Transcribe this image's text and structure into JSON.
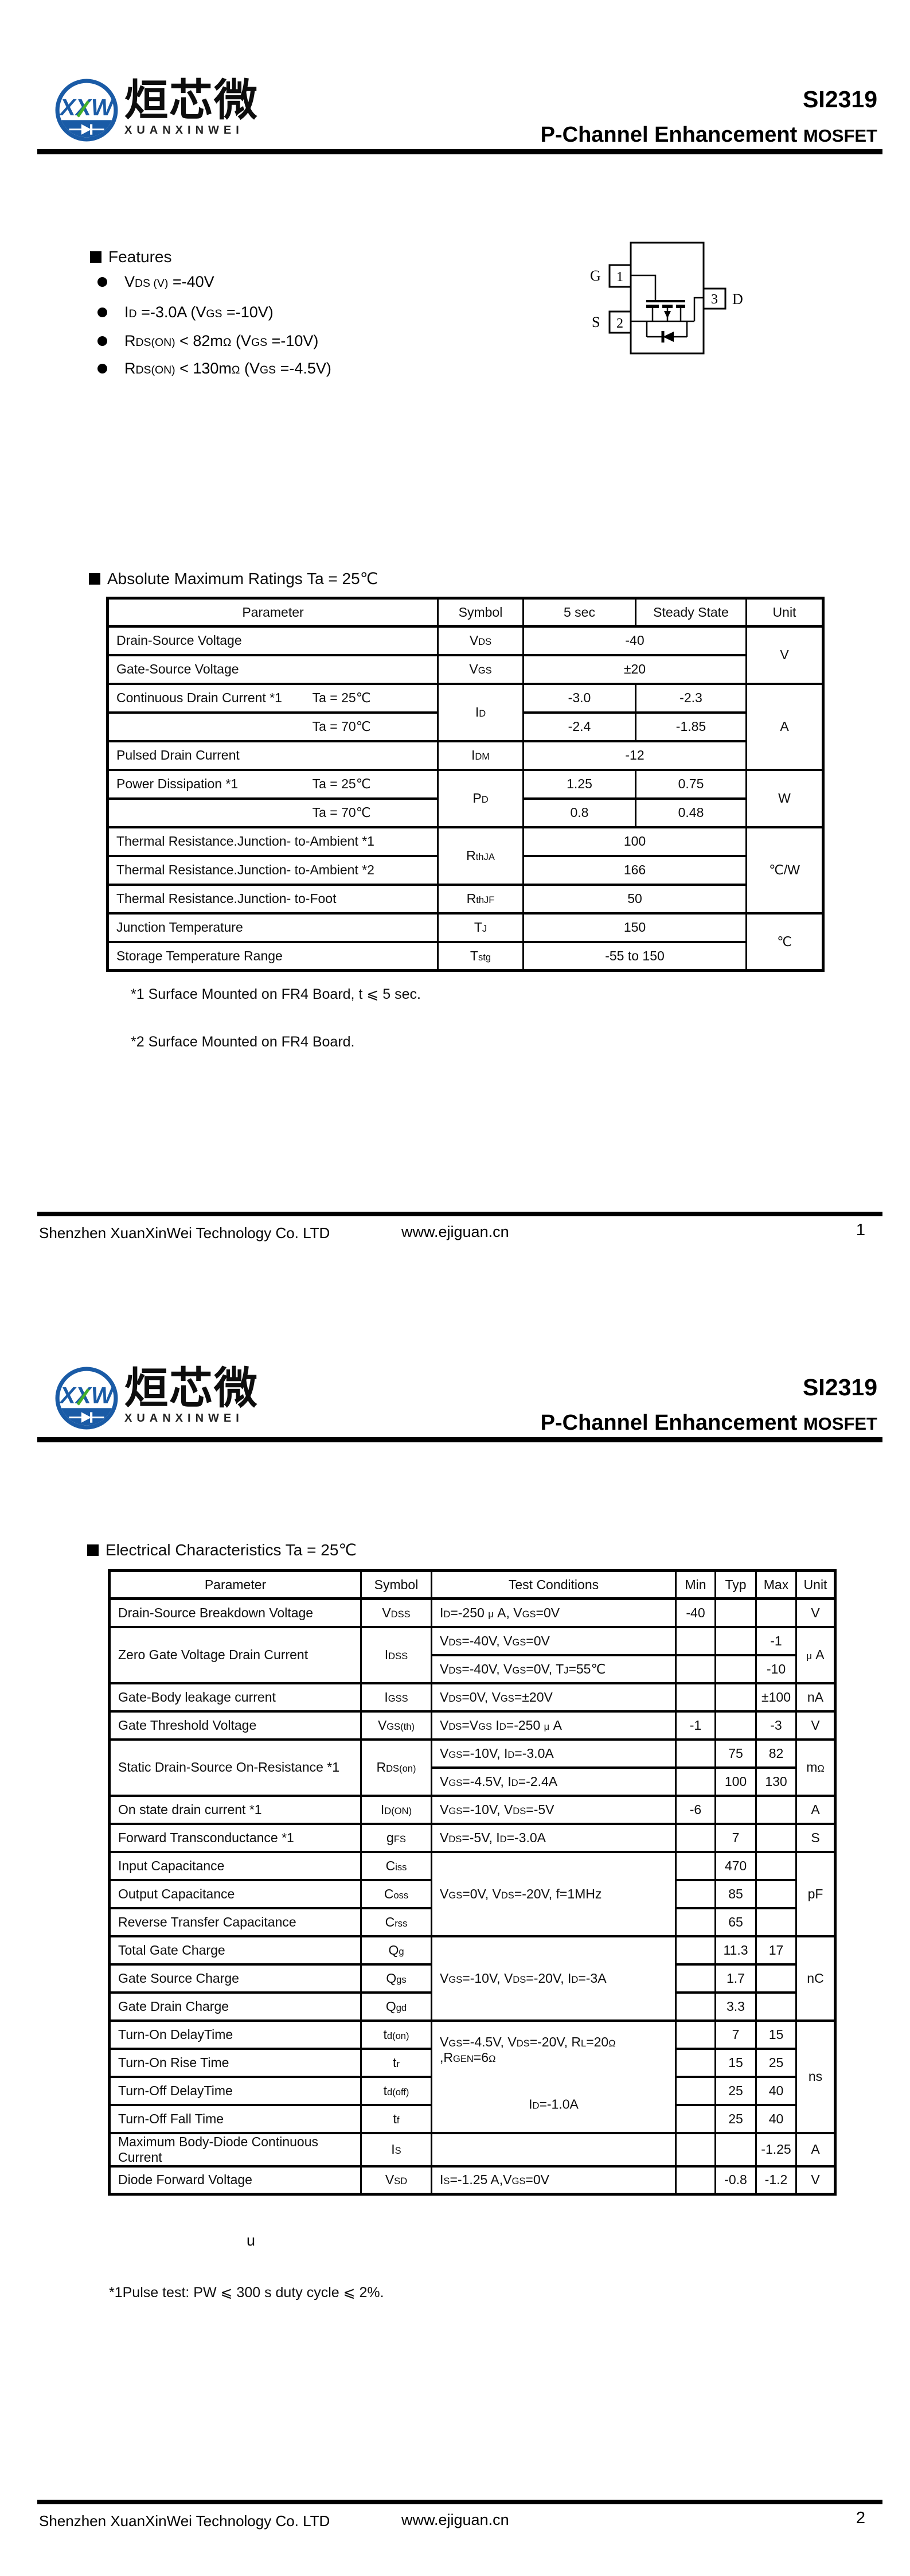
{
  "brand": {
    "logo_text": "XXW",
    "name_cn": "烜芯微",
    "name_en": "XUANXINWEI",
    "blue": "#1a5ba6",
    "green": "#43b02a"
  },
  "header": {
    "part": "SI2319",
    "title": "P-Channel Enhancement",
    "title_small": "MOSFET"
  },
  "footer": {
    "company": "Shenzhen XuanXinWei Technology Co. LTD",
    "website": "www.ejiguan.cn",
    "page1": "1",
    "page2": "2"
  },
  "features": {
    "title": "Features",
    "items": [
      "V~DS (V)~ =-40V",
      "I~D~ =-3.0A (V~GS~ =-10V)",
      "R~DS(ON)~ < 82m~Ω~ (V~GS~ =-10V)",
      "R~DS(ON)~ < 130m~Ω~ (V~GS~ =-4.5V)"
    ]
  },
  "package": {
    "pin1": "1",
    "pin2": "2",
    "pin3": "3",
    "gate": "G",
    "source": "S",
    "drain": "D"
  },
  "amr": {
    "title": "Absolute Maximum Ratings Ta = 25℃",
    "headers": [
      "Parameter",
      "Symbol",
      "5 sec",
      "Steady State",
      "Unit"
    ],
    "rows": [
      [
        {
          "t": "Drain-Source Voltage",
          "a": "l"
        },
        {
          "t": "V~DS~"
        },
        {
          "t": "-40",
          "c": 2
        },
        {
          "t": "V",
          "r": 2
        }
      ],
      [
        {
          "t": "Gate-Source Voltage",
          "a": "l"
        },
        {
          "t": "V~GS~"
        },
        {
          "t": "±20",
          "c": 2
        }
      ],
      [
        {
          "t": "Continuous Drain Current *1",
          "t2": "Ta = 25℃",
          "a": "split"
        },
        {
          "t": "I~D~",
          "r": 2
        },
        {
          "t": "-3.0"
        },
        {
          "t": "-2.3"
        },
        {
          "t": "A",
          "r": 3
        }
      ],
      [
        {
          "t": "",
          "t2": "Ta = 70℃",
          "a": "split"
        },
        {
          "t": "-2.4"
        },
        {
          "t": "-1.85"
        }
      ],
      [
        {
          "t": "Pulsed Drain Current",
          "a": "l"
        },
        {
          "t": "I~DM~"
        },
        {
          "t": "-12",
          "c": 2
        }
      ],
      [
        {
          "t": "Power Dissipation   *1",
          "t2": "Ta = 25℃",
          "a": "split"
        },
        {
          "t": "P~D~",
          "r": 2
        },
        {
          "t": "1.25"
        },
        {
          "t": "0.75"
        },
        {
          "t": "W",
          "r": 2
        }
      ],
      [
        {
          "t": "",
          "t2": "Ta = 70℃",
          "a": "split"
        },
        {
          "t": "0.8"
        },
        {
          "t": "0.48"
        }
      ],
      [
        {
          "t": "Thermal Resistance.Junction- to-Ambient  *1",
          "a": "l"
        },
        {
          "t": "R~thJA~",
          "r": 2
        },
        {
          "t": "100",
          "c": 2
        },
        {
          "t": "℃/W",
          "r": 3
        }
      ],
      [
        {
          "t": "Thermal Resistance.Junction- to-Ambient  *2",
          "a": "l"
        },
        {
          "t": "166",
          "c": 2
        }
      ],
      [
        {
          "t": "Thermal Resistance.Junction- to-Foot",
          "a": "l"
        },
        {
          "t": "R~thJF~"
        },
        {
          "t": "50",
          "c": 2
        }
      ],
      [
        {
          "t": "Junction  Temperature",
          "a": "l"
        },
        {
          "t": "T~J~"
        },
        {
          "t": "150",
          "c": 2
        },
        {
          "t": "℃",
          "r": 2
        }
      ],
      [
        {
          "t": "Storage Temperature Range",
          "a": "l"
        },
        {
          "t": "T~stg~"
        },
        {
          "t": "-55 to 150",
          "c": 2
        }
      ]
    ],
    "notes": [
      "*1 Surface Mounted on FR4 Board, t ⩽  5 sec.",
      "*2 Surface Mounted on FR4 Board."
    ]
  },
  "ec": {
    "title": "Electrical Characteristics Ta = 25℃",
    "headers": [
      "Parameter",
      "Symbol",
      "Test Conditions",
      "Min",
      "Typ",
      "Max",
      "Unit"
    ],
    "rows": [
      [
        {
          "t": "Drain-Source Breakdown Voltage",
          "a": "l"
        },
        {
          "t": "V~DSS~"
        },
        {
          "t": "I~D~=-250 ~μ~ A, V~GS~=0V",
          "a": "l"
        },
        {
          "t": "-40"
        },
        {
          "t": ""
        },
        {
          "t": ""
        },
        {
          "t": "V"
        }
      ],
      [
        {
          "t": "Zero Gate Voltage Drain Current",
          "a": "l",
          "r": 2
        },
        {
          "t": "I~DSS~",
          "r": 2
        },
        {
          "t": "V~DS~=-40V, V~GS~=0V",
          "a": "l"
        },
        {
          "t": ""
        },
        {
          "t": ""
        },
        {
          "t": "-1"
        },
        {
          "t": "~μ~ A",
          "r": 2
        }
      ],
      [
        {
          "t": "V~DS~=-40V, V~GS~=0V, T~J~=55℃",
          "a": "l"
        },
        {
          "t": ""
        },
        {
          "t": ""
        },
        {
          "t": "-10"
        }
      ],
      [
        {
          "t": "Gate-Body leakage current",
          "a": "l"
        },
        {
          "t": "I~GSS~"
        },
        {
          "t": "V~DS~=0V, V~GS~=±20V",
          "a": "l"
        },
        {
          "t": ""
        },
        {
          "t": ""
        },
        {
          "t": "±100"
        },
        {
          "t": "nA"
        }
      ],
      [
        {
          "t": "Gate Threshold Voltage",
          "a": "l"
        },
        {
          "t": "V~GS(th)~"
        },
        {
          "t": "V~DS~=V~GS~ I~D~=-250 ~μ~ A",
          "a": "l"
        },
        {
          "t": "-1"
        },
        {
          "t": ""
        },
        {
          "t": "-3"
        },
        {
          "t": "V"
        }
      ],
      [
        {
          "t": "Static Drain-Source On-Resistance  *1",
          "a": "l",
          "r": 2
        },
        {
          "t": "R~DS(on)~",
          "r": 2
        },
        {
          "t": "V~GS~=-10V, I~D~=-3.0A",
          "a": "l"
        },
        {
          "t": ""
        },
        {
          "t": "75"
        },
        {
          "t": "82"
        },
        {
          "t": "m~Ω~",
          "r": 2
        }
      ],
      [
        {
          "t": "V~GS~=-4.5V, I~D~=-2.4A",
          "a": "l"
        },
        {
          "t": ""
        },
        {
          "t": "100"
        },
        {
          "t": "130"
        }
      ],
      [
        {
          "t": "On state drain current  *1",
          "a": "l"
        },
        {
          "t": "I~D(ON)~"
        },
        {
          "t": "V~GS~=-10V, V~DS~=-5V",
          "a": "l"
        },
        {
          "t": "-6"
        },
        {
          "t": ""
        },
        {
          "t": ""
        },
        {
          "t": "A"
        }
      ],
      [
        {
          "t": "Forward Transconductance  *1",
          "a": "l"
        },
        {
          "t": "g~FS~"
        },
        {
          "t": "V~DS~=-5V, I~D~=-3.0A",
          "a": "l"
        },
        {
          "t": ""
        },
        {
          "t": "7"
        },
        {
          "t": ""
        },
        {
          "t": "S"
        }
      ],
      [
        {
          "t": "Input Capacitance",
          "a": "l"
        },
        {
          "t": "C~iss~"
        },
        {
          "t": "V~GS~=0V, V~DS~=-20V, f=1MHz",
          "a": "l",
          "r": 3
        },
        {
          "t": ""
        },
        {
          "t": "470"
        },
        {
          "t": ""
        },
        {
          "t": "pF",
          "r": 3
        }
      ],
      [
        {
          "t": "Output Capacitance",
          "a": "l"
        },
        {
          "t": "C~oss~"
        },
        {
          "t": ""
        },
        {
          "t": "85"
        },
        {
          "t": ""
        }
      ],
      [
        {
          "t": "Reverse Transfer Capacitance",
          "a": "l"
        },
        {
          "t": "C~rss~"
        },
        {
          "t": ""
        },
        {
          "t": "65"
        },
        {
          "t": ""
        }
      ],
      [
        {
          "t": "Total Gate Charge",
          "a": "l"
        },
        {
          "t": "Q~g~"
        },
        {
          "t": "V~GS~=-10V, V~DS~=-20V, I~D~=-3A",
          "a": "l",
          "r": 3
        },
        {
          "t": ""
        },
        {
          "t": "11.3"
        },
        {
          "t": "17"
        },
        {
          "t": "nC",
          "r": 3
        }
      ],
      [
        {
          "t": "Gate Source Charge",
          "a": "l"
        },
        {
          "t": "Q~gs~"
        },
        {
          "t": ""
        },
        {
          "t": "1.7"
        },
        {
          "t": ""
        }
      ],
      [
        {
          "t": "Gate Drain Charge",
          "a": "l"
        },
        {
          "t": "Q~gd~"
        },
        {
          "t": ""
        },
        {
          "t": "3.3"
        },
        {
          "t": ""
        }
      ],
      [
        {
          "t": "Turn-On DelayTime",
          "a": "l"
        },
        {
          "t": "t~d(on)~"
        },
        {
          "lines": [
            "V~GS~=-4.5V, V~DS~=-20V, R~L~=20~Ω~ ,R~GEN~=6~Ω~",
            "I~D~=-1.0A"
          ],
          "r": 4
        },
        {
          "t": ""
        },
        {
          "t": "7"
        },
        {
          "t": "15"
        },
        {
          "t": "ns",
          "r": 4
        }
      ],
      [
        {
          "t": "Turn-On Rise Time",
          "a": "l"
        },
        {
          "t": "t~r~"
        },
        {
          "t": ""
        },
        {
          "t": "15"
        },
        {
          "t": "25"
        }
      ],
      [
        {
          "t": "Turn-Off DelayTime",
          "a": "l"
        },
        {
          "t": "t~d(off)~"
        },
        {
          "t": ""
        },
        {
          "t": "25"
        },
        {
          "t": "40"
        }
      ],
      [
        {
          "t": "Turn-Off Fall Time",
          "a": "l"
        },
        {
          "t": "t~f~"
        },
        {
          "t": ""
        },
        {
          "t": "25"
        },
        {
          "t": "40"
        }
      ],
      [
        {
          "t": "Maximum Body-Diode Continuous Current",
          "a": "l"
        },
        {
          "t": "I~S~"
        },
        {
          "t": "",
          "a": "l"
        },
        {
          "t": ""
        },
        {
          "t": ""
        },
        {
          "t": "-1.25"
        },
        {
          "t": "A"
        }
      ],
      [
        {
          "t": "Diode Forward Voltage",
          "a": "l"
        },
        {
          "t": "V~SD~"
        },
        {
          "t": "I~S~=-1.25 A,V~GS~=0V",
          "a": "l"
        },
        {
          "t": ""
        },
        {
          "t": "-0.8"
        },
        {
          "t": "-1.2"
        },
        {
          "t": "V"
        }
      ]
    ],
    "stray": "u",
    "note": "*1Pulse test: PW ⩽ 300  s duty cycle ⩽ 2%."
  }
}
